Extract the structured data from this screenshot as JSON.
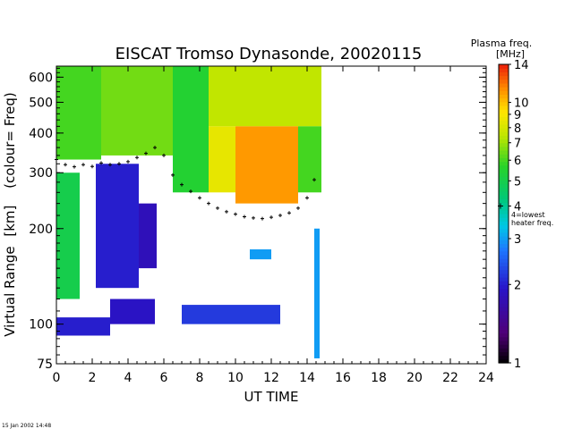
{
  "chart_data": {
    "type": "heatmap",
    "title": "EISCAT Tromso Dynasonde,  20020115",
    "xlabel": "UT TIME",
    "ylabel_main": "Virtual Range",
    "ylabel_unit": "[km]",
    "ylabel_note": "(colour= Freq)",
    "xlim": [
      0,
      24
    ],
    "ylim": [
      75,
      650
    ],
    "y_scale": "log",
    "x_ticks": [
      0,
      2,
      4,
      6,
      8,
      10,
      12,
      14,
      16,
      18,
      20,
      22,
      24
    ],
    "y_ticks": [
      75,
      100,
      200,
      300,
      400,
      500,
      600
    ],
    "colorbar": {
      "title_line1": "Plasma freq.",
      "title_line2": "[MHz]",
      "scale": "log",
      "range": [
        1,
        14
      ],
      "ticks": [
        1,
        2,
        3,
        4,
        5,
        6,
        7,
        8,
        9,
        10,
        14
      ],
      "annotation": "4=lowest heater freq.",
      "annotation_line1": "4=lowest",
      "annotation_line2": "heater freq."
    },
    "regions": [
      {
        "x": [
          0.0,
          2.5
        ],
        "y": [
          330,
          650
        ],
        "freq": 6
      },
      {
        "x": [
          2.5,
          6.5
        ],
        "y": [
          340,
          650
        ],
        "freq": 6.5
      },
      {
        "x": [
          6.5,
          8.5
        ],
        "y": [
          260,
          650
        ],
        "freq": 5.5
      },
      {
        "x": [
          8.5,
          14.8
        ],
        "y": [
          420,
          650
        ],
        "freq": 7.5
      },
      {
        "x": [
          8.5,
          10.0
        ],
        "y": [
          260,
          420
        ],
        "freq": 8.5
      },
      {
        "x": [
          10.0,
          13.5
        ],
        "y": [
          240,
          420
        ],
        "freq": 11
      },
      {
        "x": [
          13.5,
          14.8
        ],
        "y": [
          260,
          420
        ],
        "freq": 6
      },
      {
        "x": [
          2.2,
          4.6
        ],
        "y": [
          130,
          320
        ],
        "freq": 2
      },
      {
        "x": [
          4.6,
          5.6
        ],
        "y": [
          150,
          240
        ],
        "freq": 1.8
      },
      {
        "x": [
          0.0,
          1.3
        ],
        "y": [
          120,
          300
        ],
        "freq": 5
      },
      {
        "x": [
          0.0,
          3.0
        ],
        "y": [
          92,
          105
        ],
        "freq": 2
      },
      {
        "x": [
          3.0,
          5.5
        ],
        "y": [
          100,
          120
        ],
        "freq": 1.9
      },
      {
        "x": [
          7.0,
          12.5
        ],
        "y": [
          100,
          115
        ],
        "freq": 2.2
      },
      {
        "x": [
          10.8,
          12.0
        ],
        "y": [
          160,
          172
        ],
        "freq": 3
      },
      {
        "x": [
          14.4,
          14.7
        ],
        "y": [
          78,
          200
        ],
        "freq": 3
      }
    ],
    "cusp_points": [
      [
        0.0,
        330
      ],
      [
        0.5,
        318
      ],
      [
        1.0,
        313
      ],
      [
        1.5,
        318
      ],
      [
        2.0,
        314
      ],
      [
        2.5,
        322
      ],
      [
        3.0,
        318
      ],
      [
        3.5,
        320
      ],
      [
        4.0,
        325
      ],
      [
        4.5,
        335
      ],
      [
        5.0,
        345
      ],
      [
        5.5,
        360
      ],
      [
        6.0,
        340
      ],
      [
        6.5,
        295
      ],
      [
        7.0,
        275
      ],
      [
        7.5,
        262
      ],
      [
        8.0,
        250
      ],
      [
        8.5,
        240
      ],
      [
        9.0,
        232
      ],
      [
        9.5,
        226
      ],
      [
        10.0,
        222
      ],
      [
        10.5,
        218
      ],
      [
        11.0,
        216
      ],
      [
        11.5,
        215
      ],
      [
        12.0,
        217
      ],
      [
        12.5,
        220
      ],
      [
        13.0,
        224
      ],
      [
        13.5,
        232
      ],
      [
        14.0,
        250
      ],
      [
        14.4,
        285
      ]
    ]
  },
  "footer": {
    "timestamp": "15 Jan 2002 14:48"
  }
}
